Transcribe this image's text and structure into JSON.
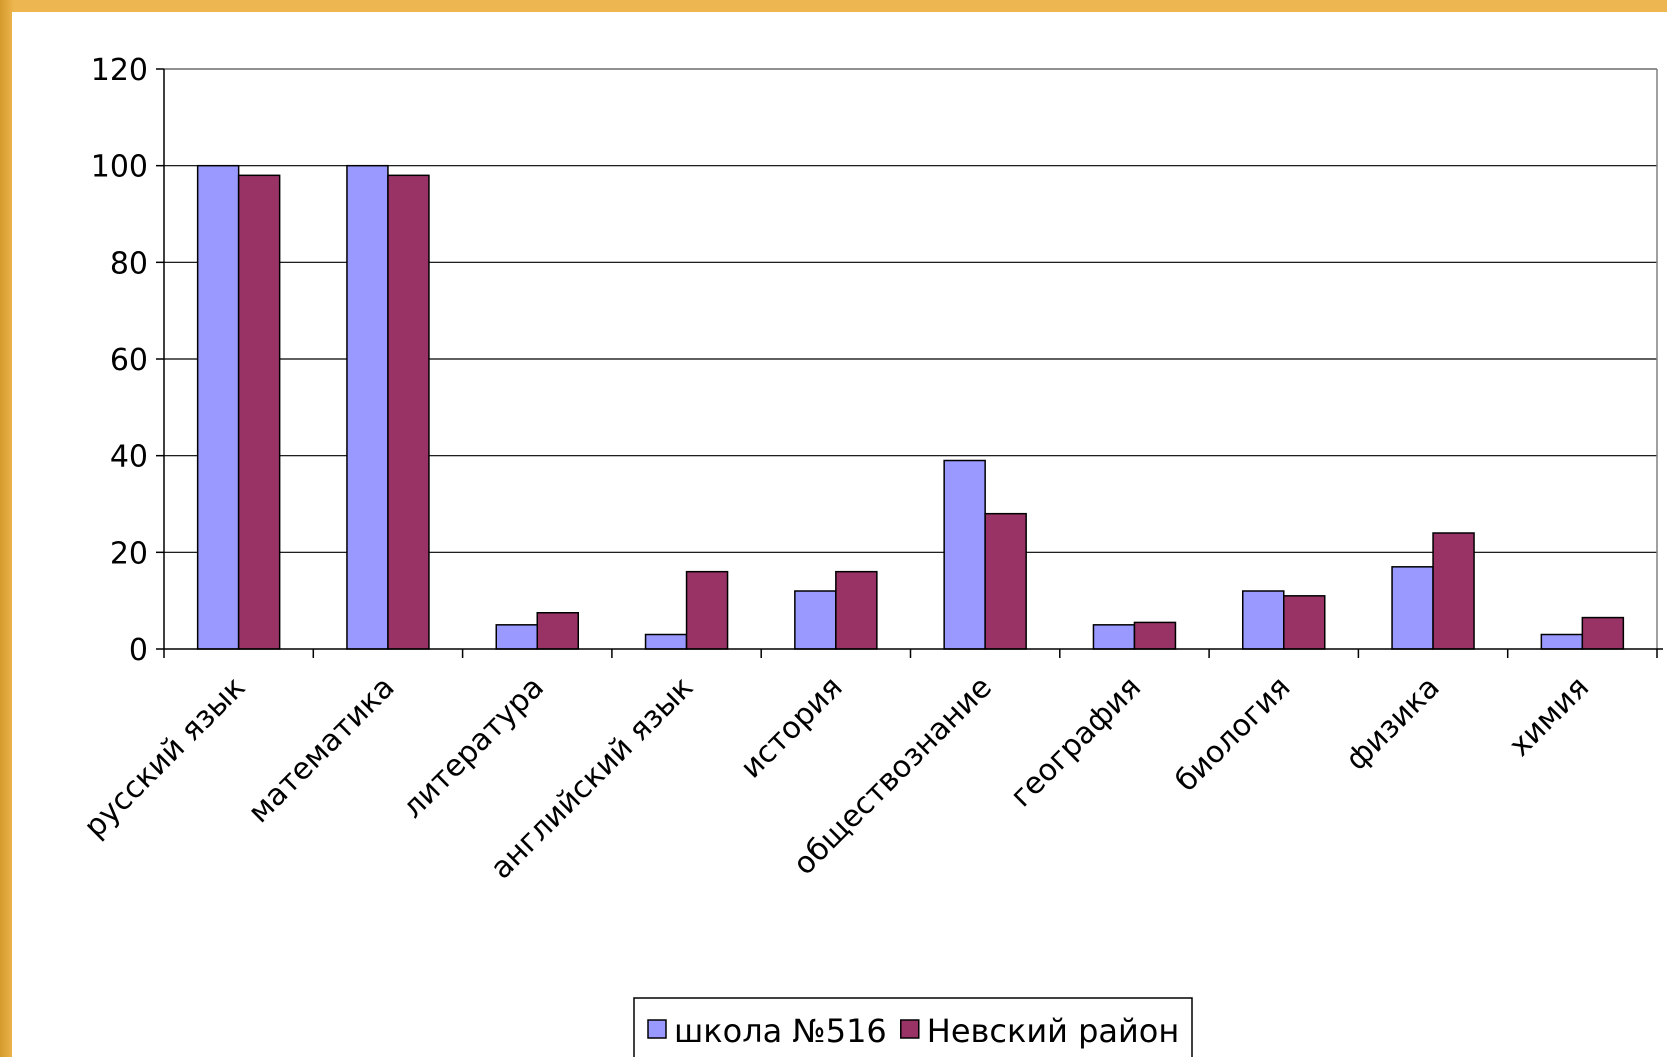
{
  "chart_data": {
    "type": "bar",
    "categories": [
      "русский язык",
      "математика",
      "литература",
      "английский язык",
      "история",
      "обществознание",
      "география",
      "биология",
      "физика",
      "химия"
    ],
    "series": [
      {
        "name": "школа №516",
        "color": "#9999ff",
        "values": [
          100,
          100,
          5,
          3,
          12,
          39,
          5,
          12,
          17,
          3
        ]
      },
      {
        "name": "Невский район",
        "color": "#993366",
        "values": [
          98,
          98,
          7.5,
          16,
          16,
          28,
          5.5,
          11,
          24,
          6.5
        ]
      }
    ],
    "ylim": [
      0,
      120
    ],
    "yticks": [
      0,
      20,
      40,
      60,
      80,
      100,
      120
    ],
    "grid": true,
    "legend": "bottom-center"
  }
}
